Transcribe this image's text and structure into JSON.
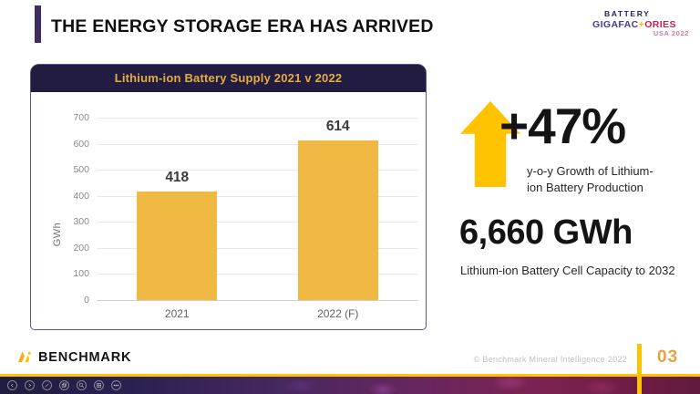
{
  "slide": {
    "title": "THE ENERGY STORAGE ERA HAS ARRIVED",
    "copyright": "© Benchmark Mineral Intelligence 2022",
    "page_number": "03"
  },
  "event_logo": {
    "line1": "BATTERY",
    "gigafac": "GIGAFAC",
    "plus": "+",
    "ories": "ORIES",
    "line3": "USA 2022"
  },
  "brand": {
    "name": "BENCHMARK"
  },
  "chart_data": {
    "type": "bar",
    "title": "Lithium-ion Battery Supply 2021 v 2022",
    "categories": [
      "2021",
      "2022 (F)"
    ],
    "values": [
      418,
      614
    ],
    "xlabel": "",
    "ylabel": "GWh",
    "ylim": [
      0,
      700
    ],
    "ytick_step": 100,
    "bar_color": "#F0B944",
    "grid": true,
    "legend": "none"
  },
  "stats": {
    "growth": {
      "value": "+47%",
      "caption": "y-o-y Growth of Lithium-\nion Battery Production"
    },
    "capacity": {
      "value": "6,660 GWh",
      "caption": "Lithium-ion Battery Cell Capacity to 2032"
    }
  },
  "toolbar": {
    "icons": [
      "back",
      "forward",
      "edit",
      "copy",
      "zoom",
      "grid",
      "more"
    ]
  },
  "colors": {
    "accent_yellow": "#FFC300",
    "bar_gold": "#F0B944",
    "header_navy": "#221C41",
    "panel_border": "#5E5191",
    "title_bar_purple": "#3E2E5F",
    "page_number_gold": "#E9A23B"
  }
}
